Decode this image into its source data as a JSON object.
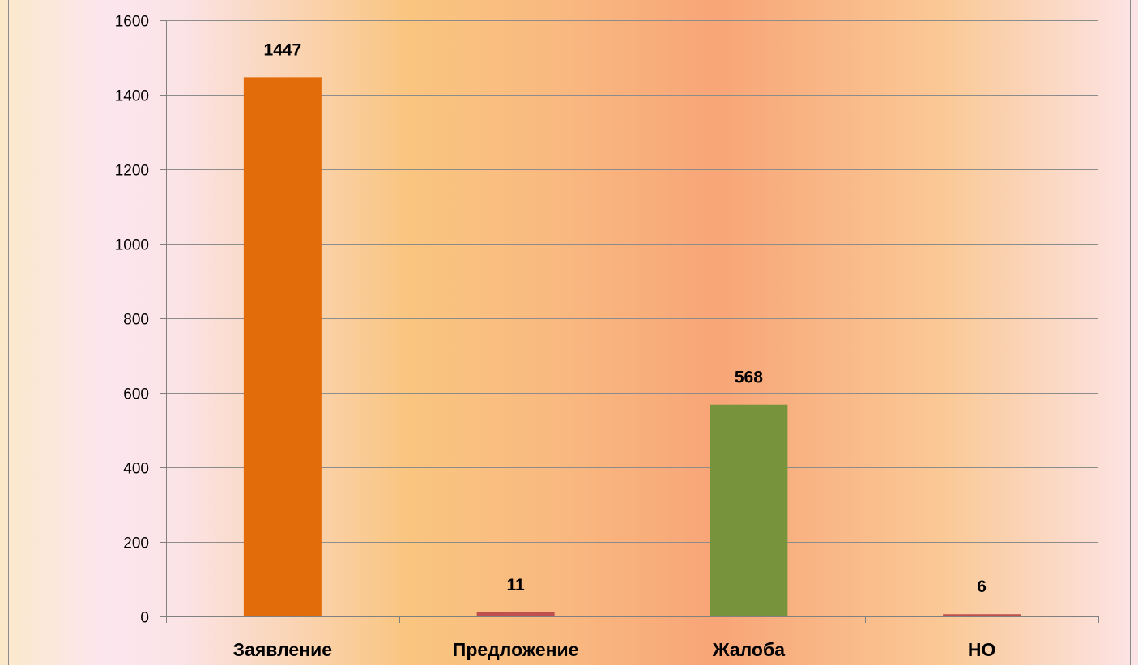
{
  "chart_data": {
    "type": "bar",
    "categories": [
      "Заявление",
      "Предложение",
      "Жалоба",
      "НО"
    ],
    "values": [
      1447,
      11,
      568,
      6
    ],
    "bar_colors": [
      "#E36C0A",
      "#C0504D",
      "#77933C",
      "#C0504D"
    ],
    "data_labels": [
      "1447",
      "11",
      "568",
      "6"
    ],
    "ylim": [
      0,
      1600
    ],
    "y_ticks": [
      0,
      200,
      400,
      600,
      800,
      1000,
      1200,
      1400,
      1600
    ],
    "y_tick_labels": [
      "0",
      "200",
      "400",
      "600",
      "800",
      "1000",
      "1200",
      "1400",
      "1600"
    ],
    "grid": true,
    "legend": "none",
    "title": "",
    "xlabel": "",
    "ylabel": ""
  },
  "colors": {
    "gridline": "#8c8c8c",
    "axis": "#808080",
    "border": "#8c8c8c",
    "text": "#000000",
    "background_gradient": [
      "#FBE7C8",
      "#FCE6EE",
      "#F9C57E",
      "#F9B77F",
      "#F8A677",
      "#FAC796",
      "#FCE5E4"
    ]
  }
}
